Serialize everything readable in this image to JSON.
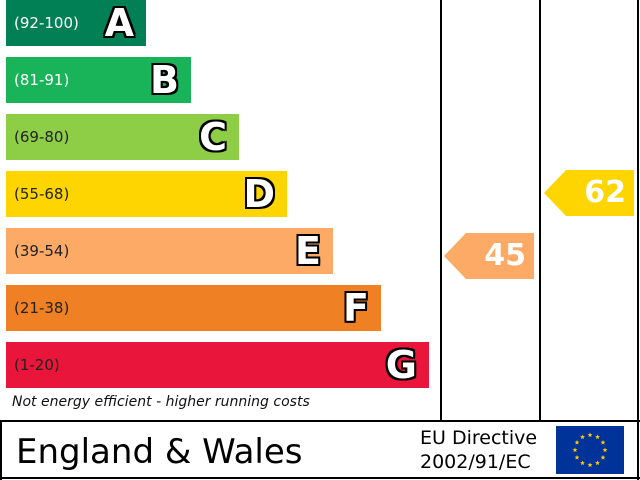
{
  "chart_data": {
    "type": "bar",
    "bands": [
      {
        "letter": "A",
        "range": "(92-100)",
        "color": "#008054",
        "light_text": true
      },
      {
        "letter": "B",
        "range": "(81-91)",
        "color": "#19b459",
        "light_text": true
      },
      {
        "letter": "C",
        "range": "(69-80)",
        "color": "#8dce46",
        "light_text": false
      },
      {
        "letter": "D",
        "range": "(55-68)",
        "color": "#ffd500",
        "light_text": false
      },
      {
        "letter": "E",
        "range": "(39-54)",
        "color": "#fcaa65",
        "light_text": false
      },
      {
        "letter": "F",
        "range": "(21-38)",
        "color": "#ef8023",
        "light_text": false
      },
      {
        "letter": "G",
        "range": "(1-20)",
        "color": "#e9153b",
        "light_text": false
      }
    ],
    "current": {
      "value": 45,
      "band": "E",
      "color": "#fcaa65"
    },
    "potential": {
      "value": 62,
      "band": "D",
      "color": "#ffd500"
    }
  },
  "footer_note": "Not energy efficient - higher running costs",
  "country": "England & Wales",
  "directive_line1": "EU Directive",
  "directive_line2": "2002/91/EC",
  "flag": {
    "icon": "eu-flag-icon",
    "background": "#003399",
    "star_color": "#ffcc00"
  }
}
